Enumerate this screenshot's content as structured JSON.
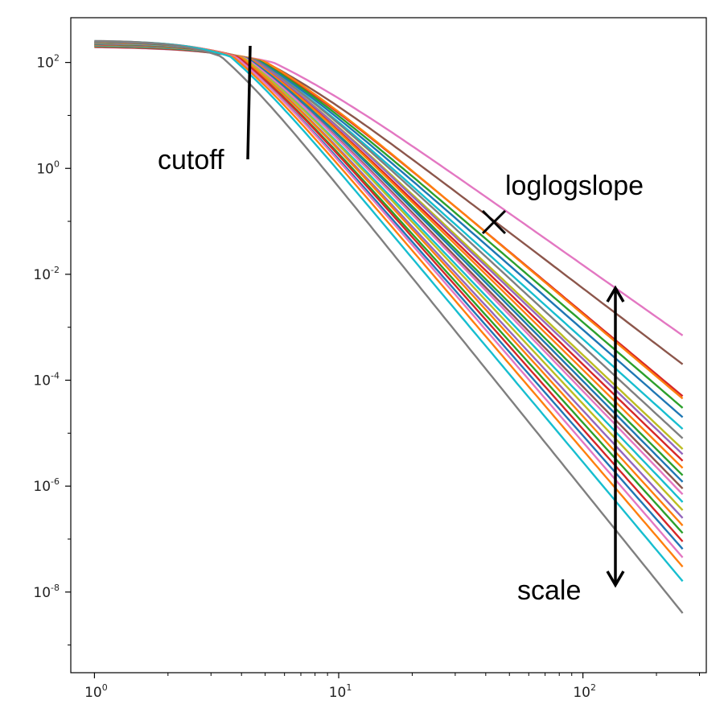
{
  "chart_data": {
    "type": "line",
    "title": "",
    "xlabel": "",
    "ylabel": "",
    "x_scale": "log",
    "y_scale": "log",
    "xlim": [
      0.8,
      320
    ],
    "ylim": [
      3e-10,
      700
    ],
    "grid": false,
    "legend": "none",
    "x_ticks": [
      {
        "base": "10",
        "exp": "0",
        "value": 1
      },
      {
        "base": "10",
        "exp": "1",
        "value": 10
      },
      {
        "base": "10",
        "exp": "2",
        "value": 100
      }
    ],
    "y_ticks": [
      {
        "base": "10",
        "exp": "2",
        "value": 100
      },
      {
        "base": "10",
        "exp": "0",
        "value": 1
      },
      {
        "base": "10",
        "exp": "-2",
        "value": 0.01
      },
      {
        "base": "10",
        "exp": "-4",
        "value": 0.0001
      },
      {
        "base": "10",
        "exp": "-6",
        "value": 1e-06
      },
      {
        "base": "10",
        "exp": "-8",
        "value": 1e-08
      }
    ],
    "x_range": [
      1,
      256
    ],
    "plateau_range": [
      200,
      260
    ],
    "series": [
      {
        "color": "#e377c2",
        "cutoff": 5.4,
        "slope": -2.05,
        "value_at_256": 0.0007
      },
      {
        "color": "#8c564b",
        "cutoff": 5.0,
        "slope": -2.2,
        "value_at_256": 0.0002
      },
      {
        "color": "#d62728",
        "cutoff": 4.9,
        "slope": -2.35,
        "value_at_256": 5e-05
      },
      {
        "color": "#ff7f0e",
        "cutoff": 5.0,
        "slope": -2.36,
        "value_at_256": 4.5e-05
      },
      {
        "color": "#2ca02c",
        "cutoff": 4.8,
        "slope": -2.4,
        "value_at_256": 3e-05
      },
      {
        "color": "#1f77b4",
        "cutoff": 4.7,
        "slope": -2.45,
        "value_at_256": 2e-05
      },
      {
        "color": "#17becf",
        "cutoff": 4.6,
        "slope": -2.5,
        "value_at_256": 1.2e-05
      },
      {
        "color": "#7f7f7f",
        "cutoff": 4.6,
        "slope": -2.52,
        "value_at_256": 8e-06
      },
      {
        "color": "#bcbd22",
        "cutoff": 4.5,
        "slope": -2.56,
        "value_at_256": 5e-06
      },
      {
        "color": "#9467bd",
        "cutoff": 4.5,
        "slope": -2.58,
        "value_at_256": 4e-06
      },
      {
        "color": "#d62728",
        "cutoff": 4.4,
        "slope": -2.62,
        "value_at_256": 3e-06
      },
      {
        "color": "#ff7f0e",
        "cutoff": 4.4,
        "slope": -2.65,
        "value_at_256": 2.2e-06
      },
      {
        "color": "#2ca02c",
        "cutoff": 4.3,
        "slope": -2.68,
        "value_at_256": 1.6e-06
      },
      {
        "color": "#1f77b4",
        "cutoff": 4.3,
        "slope": -2.7,
        "value_at_256": 1.2e-06
      },
      {
        "color": "#8c564b",
        "cutoff": 4.2,
        "slope": -2.74,
        "value_at_256": 9e-07
      },
      {
        "color": "#e377c2",
        "cutoff": 4.2,
        "slope": -2.76,
        "value_at_256": 7e-07
      },
      {
        "color": "#17becf",
        "cutoff": 4.1,
        "slope": -2.8,
        "value_at_256": 5e-07
      },
      {
        "color": "#bcbd22",
        "cutoff": 4.1,
        "slope": -2.83,
        "value_at_256": 3.5e-07
      },
      {
        "color": "#9467bd",
        "cutoff": 4.0,
        "slope": -2.86,
        "value_at_256": 2.5e-07
      },
      {
        "color": "#ff7f0e",
        "cutoff": 4.0,
        "slope": -2.88,
        "value_at_256": 1.8e-07
      },
      {
        "color": "#2ca02c",
        "cutoff": 3.9,
        "slope": -2.92,
        "value_at_256": 1.3e-07
      },
      {
        "color": "#d62728",
        "cutoff": 3.9,
        "slope": -2.95,
        "value_at_256": 9e-08
      },
      {
        "color": "#1f77b4",
        "cutoff": 3.8,
        "slope": -2.98,
        "value_at_256": 6.5e-08
      },
      {
        "color": "#e377c2",
        "cutoff": 3.8,
        "slope": -3.02,
        "value_at_256": 4.5e-08
      },
      {
        "color": "#ff7f0e",
        "cutoff": 3.7,
        "slope": -3.05,
        "value_at_256": 3e-08
      },
      {
        "color": "#17becf",
        "cutoff": 3.6,
        "slope": -3.1,
        "value_at_256": 1.6e-08
      },
      {
        "color": "#7f7f7f",
        "cutoff": 3.3,
        "slope": -3.3,
        "value_at_256": 4e-09
      }
    ]
  },
  "annotations": {
    "cutoff_label": "cutoff",
    "slope_label": "loglogslope",
    "scale_label": "scale"
  }
}
